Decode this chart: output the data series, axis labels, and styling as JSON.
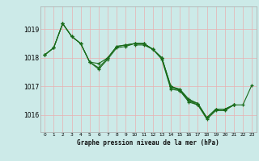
{
  "bg_color": "#cceae8",
  "grid_color": "#e8b0b0",
  "line_color": "#1a6b1a",
  "ylabel_ticks": [
    1016,
    1017,
    1018,
    1019
  ],
  "xlim": [
    -0.5,
    23.5
  ],
  "ylim": [
    1015.4,
    1019.8
  ],
  "xlabel": "Graphe pression niveau de la mer (hPa)",
  "xticks": [
    0,
    1,
    2,
    3,
    4,
    5,
    6,
    7,
    8,
    9,
    10,
    11,
    12,
    13,
    14,
    15,
    16,
    17,
    18,
    19,
    20,
    21,
    22,
    23
  ],
  "series": [
    {
      "x": [
        0,
        1,
        2,
        3,
        4,
        5,
        6,
        7,
        8,
        9,
        10,
        11,
        12,
        13,
        14,
        15,
        16,
        17,
        18,
        19,
        20,
        21
      ],
      "y": [
        1018.1,
        1018.35,
        1019.2,
        1018.75,
        1018.5,
        1017.85,
        1017.65,
        1018.0,
        1018.4,
        1018.45,
        1018.5,
        1018.5,
        1018.3,
        1018.0,
        1016.95,
        1016.9,
        1016.55,
        1016.4,
        1015.9,
        1016.2,
        1016.2,
        1016.35
      ]
    },
    {
      "x": [
        0,
        1,
        2,
        3,
        4,
        5,
        6,
        7,
        8,
        9,
        10,
        11,
        12,
        13,
        14,
        15,
        16,
        17,
        18,
        19,
        20,
        21
      ],
      "y": [
        1018.1,
        1018.35,
        1019.2,
        1018.75,
        1018.5,
        1017.85,
        1017.8,
        1018.0,
        1018.4,
        1018.45,
        1018.5,
        1018.5,
        1018.3,
        1018.0,
        1017.0,
        1016.9,
        1016.5,
        1016.4,
        1015.9,
        1016.2,
        1016.2,
        1016.35
      ]
    },
    {
      "x": [
        0,
        1,
        2,
        3,
        4,
        5,
        6,
        7,
        8,
        9,
        10,
        11,
        12,
        13,
        14,
        15,
        16,
        17,
        18,
        19,
        20,
        21
      ],
      "y": [
        1018.1,
        1018.35,
        1019.2,
        1018.75,
        1018.5,
        1017.85,
        1017.6,
        1017.95,
        1018.35,
        1018.4,
        1018.5,
        1018.5,
        1018.3,
        1017.95,
        1016.9,
        1016.85,
        1016.45,
        1016.35,
        1015.85,
        1016.15,
        1016.15,
        1016.35
      ]
    },
    {
      "x": [
        10,
        11,
        12,
        13,
        14,
        15,
        16,
        17,
        18,
        19,
        20,
        21,
        22,
        23
      ],
      "y": [
        1018.45,
        1018.45,
        1018.3,
        1018.0,
        1017.0,
        1016.85,
        1016.5,
        1016.35,
        1015.9,
        1016.2,
        1016.2,
        1016.35,
        1016.35,
        1017.05
      ]
    }
  ]
}
